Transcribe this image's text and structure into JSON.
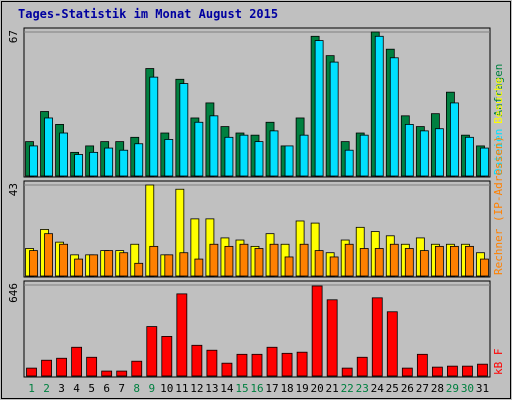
{
  "chart_data": [
    {
      "type": "bar",
      "title": "Tages-Statistik im Monat August 2015",
      "ylim": [
        0,
        67
      ],
      "yticks": [
        67
      ],
      "series": [
        {
          "name": "Anfragen",
          "color": "#008040",
          "values": [
            16,
            30,
            24,
            11,
            14,
            16,
            16,
            18,
            50,
            20,
            45,
            27,
            34,
            23,
            20,
            19,
            25,
            14,
            27,
            65,
            56,
            16,
            20,
            67,
            59,
            28,
            23,
            29,
            39,
            19,
            14
          ]
        },
        {
          "name": "Dateien",
          "color": "#00e0ff",
          "values": [
            14,
            27,
            20,
            10,
            11,
            13,
            12,
            15,
            46,
            17,
            43,
            25,
            28,
            18,
            19,
            16,
            21,
            14,
            19,
            63,
            53,
            12,
            19,
            65,
            55,
            24,
            21,
            22,
            34,
            18,
            13
          ]
        }
      ]
    },
    {
      "type": "bar",
      "ylim": [
        0,
        43
      ],
      "yticks": [
        43
      ],
      "series": [
        {
          "name": "Besuche",
          "color": "#ffff00",
          "values": [
            13,
            22,
            16,
            10,
            10,
            12,
            12,
            15,
            43,
            10,
            41,
            27,
            27,
            18,
            17,
            14,
            20,
            15,
            26,
            25,
            11,
            17,
            23,
            21,
            19,
            15,
            18,
            15,
            15,
            15,
            11
          ]
        },
        {
          "name": "Rechner (IP-Adressen)",
          "color": "#ff8000",
          "values": [
            12,
            20,
            15,
            8,
            10,
            12,
            11,
            6,
            14,
            10,
            11,
            8,
            15,
            14,
            15,
            13,
            15,
            9,
            15,
            12,
            9,
            15,
            13,
            13,
            15,
            13,
            12,
            14,
            14,
            14,
            8
          ]
        }
      ]
    },
    {
      "type": "bar",
      "ylim": [
        0,
        646
      ],
      "yticks": [
        646
      ],
      "categories": [
        "1",
        "2",
        "3",
        "4",
        "5",
        "6",
        "7",
        "8",
        "9",
        "10",
        "11",
        "12",
        "13",
        "14",
        "15",
        "16",
        "17",
        "18",
        "19",
        "20",
        "21",
        "22",
        "23",
        "24",
        "25",
        "26",
        "27",
        "28",
        "29",
        "30",
        "31"
      ],
      "highlight_categories": [
        "1",
        "2",
        "8",
        "9",
        "15",
        "16",
        "22",
        "23",
        "29",
        "30"
      ],
      "highlight_color": "#008040",
      "series": [
        {
          "name": "kB F",
          "color": "#ff0000",
          "values": [
            56,
            112,
            126,
            204,
            133,
            35,
            35,
            105,
            351,
            281,
            583,
            218,
            183,
            91,
            154,
            154,
            204,
            161,
            169,
            639,
            541,
            56,
            133,
            555,
            456,
            56,
            154,
            63,
            70,
            70,
            84
          ]
        }
      ]
    }
  ]
}
